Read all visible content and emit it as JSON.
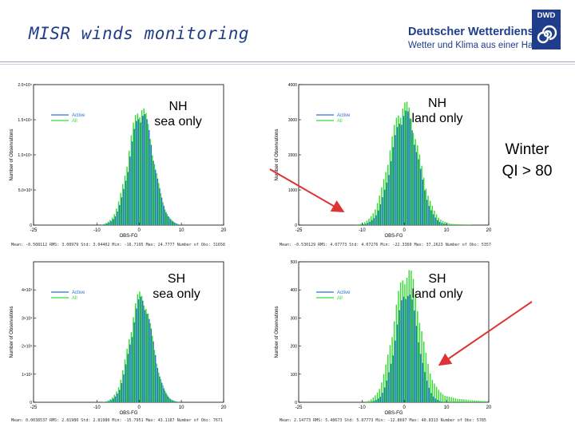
{
  "header": {
    "title": "MISR winds monitoring",
    "logo_line1": "Deutscher Wetterdienst",
    "logo_line2": "Wetter und Klima aus einer Hand",
    "logo_badge": "DWD"
  },
  "annotation": {
    "line1": "Winter",
    "line2": "QI > 80"
  },
  "colors": {
    "active": "#2f6fd6",
    "all": "#33dd33",
    "arrow": "#dd3333",
    "title": "#1f3d8a"
  },
  "chart_data": [
    {
      "type": "bar",
      "panel": "nh-sea",
      "label_line1": "NH",
      "label_line2": "sea only",
      "xlabel": "OBS-FG",
      "ylabel": "Number of Observations",
      "xlim": [
        -25,
        20
      ],
      "xticks": [
        "-25",
        "-10",
        "0",
        "10",
        "20"
      ],
      "xtick_values": [
        -25,
        -10,
        0,
        10,
        20
      ],
      "ylim": [
        0,
        20000
      ],
      "yticks": [
        "0",
        "5.0×10³",
        "1.0×10⁴",
        "1.5×10⁴",
        "2.0×10⁴"
      ],
      "ytick_values": [
        0,
        5000,
        10000,
        15000,
        20000
      ],
      "legend": [
        "Active",
        "All"
      ],
      "peak_all": 17500,
      "peak_active": 17000,
      "center": 0.5,
      "sigma_all": 2.9,
      "sigma_active": 2.8,
      "tail_all": 0,
      "stats": "Mean: -0.508112  RMS: 3.08979  Std: 3.04402  Min: -16.7195  Max: 24.7777  Number of Obs: 31658"
    },
    {
      "type": "bar",
      "panel": "nh-land",
      "label_line1": "NH",
      "label_line2": "land only",
      "xlabel": "OBS-FG",
      "ylabel": "Number of Observations",
      "xlim": [
        -25,
        20
      ],
      "xticks": [
        "-25",
        "-10",
        "0",
        "10",
        "20"
      ],
      "xtick_values": [
        -25,
        -10,
        0,
        10,
        20
      ],
      "ylim": [
        0,
        4000
      ],
      "yticks": [
        "0",
        "1000",
        "2000",
        "3000",
        "4000"
      ],
      "ytick_values": [
        0,
        1000,
        2000,
        3000,
        4000
      ],
      "legend": [
        "Active",
        "All"
      ],
      "peak_all": 3550,
      "peak_active": 3400,
      "center": 0.0,
      "sigma_all": 3.4,
      "sigma_active": 3.1,
      "tail_all": 0.05,
      "stats": "Mean: -0.530129  RMS: 4.07773  Std: 4.07276  Min: -22.3360  Max: 37.2623  Number of Obs: 5357"
    },
    {
      "type": "bar",
      "panel": "sh-sea",
      "label_line1": "SH",
      "label_line2": "sea only",
      "xlabel": "OBS-FG",
      "ylabel": "Number of Observations",
      "xlim": [
        -25,
        20
      ],
      "xticks": [
        "-25",
        "-10",
        "0",
        "10",
        "20"
      ],
      "xtick_values": [
        -25,
        -10,
        0,
        10,
        20
      ],
      "ylim": [
        0,
        5000
      ],
      "yticks": [
        "0",
        "1×10³",
        "2×10³",
        "3×10³",
        "4×10³"
      ],
      "ytick_values": [
        0,
        1000,
        2000,
        3000,
        4000
      ],
      "legend": [
        "Active",
        "All"
      ],
      "peak_all": 4000,
      "peak_active": 3900,
      "center": 0.5,
      "sigma_all": 2.7,
      "sigma_active": 2.6,
      "tail_all": 0,
      "stats": "Mean: 0.0038537  RMS: 2.81980  Std: 2.81980  Min: -15.7951  Max: 43.1187  Number of Obs: 7671"
    },
    {
      "type": "bar",
      "panel": "sh-land",
      "label_line1": "SH",
      "label_line2": "land only",
      "xlabel": "OBS-FG",
      "ylabel": "Number of Observations",
      "xlim": [
        -25,
        20
      ],
      "xticks": [
        "-25",
        "-10",
        "0",
        "10",
        "20"
      ],
      "xtick_values": [
        -25,
        -10,
        0,
        10,
        20
      ],
      "ylim": [
        0,
        500
      ],
      "yticks": [
        "0",
        "100",
        "200",
        "300",
        "400",
        "500"
      ],
      "ytick_values": [
        0,
        100,
        200,
        300,
        400,
        500
      ],
      "legend": [
        "Active",
        "All"
      ],
      "peak_all": 470,
      "peak_active": 420,
      "center": 0.5,
      "sigma_all": 3.0,
      "sigma_active": 2.6,
      "tail_all": 0.22,
      "stats": "Mean: 2.14773  RMS: 5.48673  Std: 5.07773  Min: -12.8697  Max: 40.8313  Number of Obs: 5785"
    }
  ]
}
